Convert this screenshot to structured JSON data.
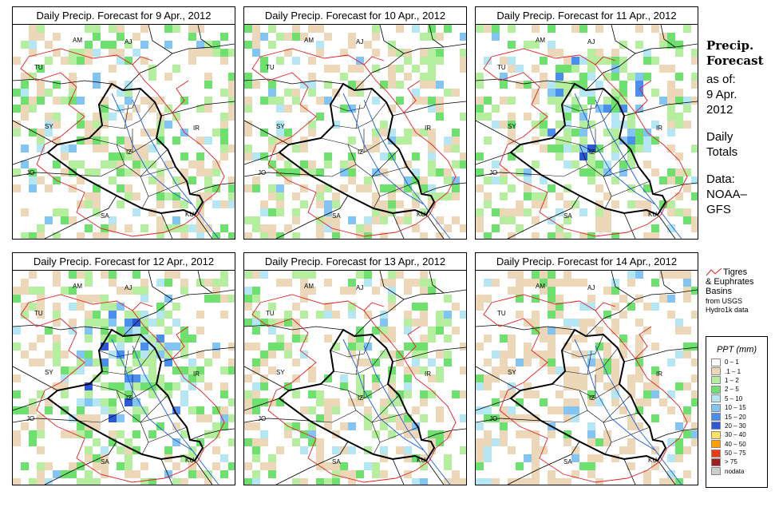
{
  "panels": [
    {
      "title": "Daily Precip. Forecast for  9 Apr., 2012"
    },
    {
      "title": "Daily Precip. Forecast for  10 Apr., 2012"
    },
    {
      "title": "Daily Precip. Forecast for  11 Apr., 2012"
    },
    {
      "title": "Daily Precip. Forecast for  12 Apr., 2012"
    },
    {
      "title": "Daily Precip. Forecast for  13 Apr., 2012"
    },
    {
      "title": "Daily Precip. Forecast for  14 Apr., 2012"
    }
  ],
  "country_labels": {
    "am": "AM",
    "aj": "AJ",
    "tu": "TU",
    "sy": "SY",
    "ir": "IR",
    "jo": "JO",
    "sa": "SA",
    "ku": "KU",
    "iz": "IZ"
  },
  "side": {
    "line1": "Precip.",
    "line2": "Forecast",
    "asof": "as of:",
    "date1": "9 Apr.",
    "date2": "2012",
    "daily1": "Daily",
    "daily2": "Totals",
    "data1": "Data:",
    "data2": "NOAA–",
    "data3": "GFS"
  },
  "basin_legend": {
    "line1": "Tigres",
    "line2": "& Euphrates",
    "line3": "Basins",
    "src1": "from USGS",
    "src2": "Hydro1k data",
    "line_color": "#e02020"
  },
  "legend": {
    "title": "PPT (mm)",
    "items": [
      {
        "label": "0 – 1",
        "color": "#ffffff"
      },
      {
        "label": ".1 – 1",
        "color": "#ecd8b8"
      },
      {
        "label": "1 – 2",
        "color": "#b6eea0"
      },
      {
        "label": "2 – 5",
        "color": "#6ee06e"
      },
      {
        "label": "5 – 10",
        "color": "#b4e6f4"
      },
      {
        "label": "10 – 15",
        "color": "#82c4f4"
      },
      {
        "label": "15 – 20",
        "color": "#4a8ef0"
      },
      {
        "label": "20 – 30",
        "color": "#2a58d8"
      },
      {
        "label": "30 – 40",
        "color": "#ffe060"
      },
      {
        "label": "40 – 50",
        "color": "#ffa000"
      },
      {
        "label": "50 – 75",
        "color": "#ee3a10"
      },
      {
        "label": "> 75",
        "color": "#a02020"
      },
      {
        "label": "nodata",
        "color": "#cccccc"
      }
    ]
  }
}
